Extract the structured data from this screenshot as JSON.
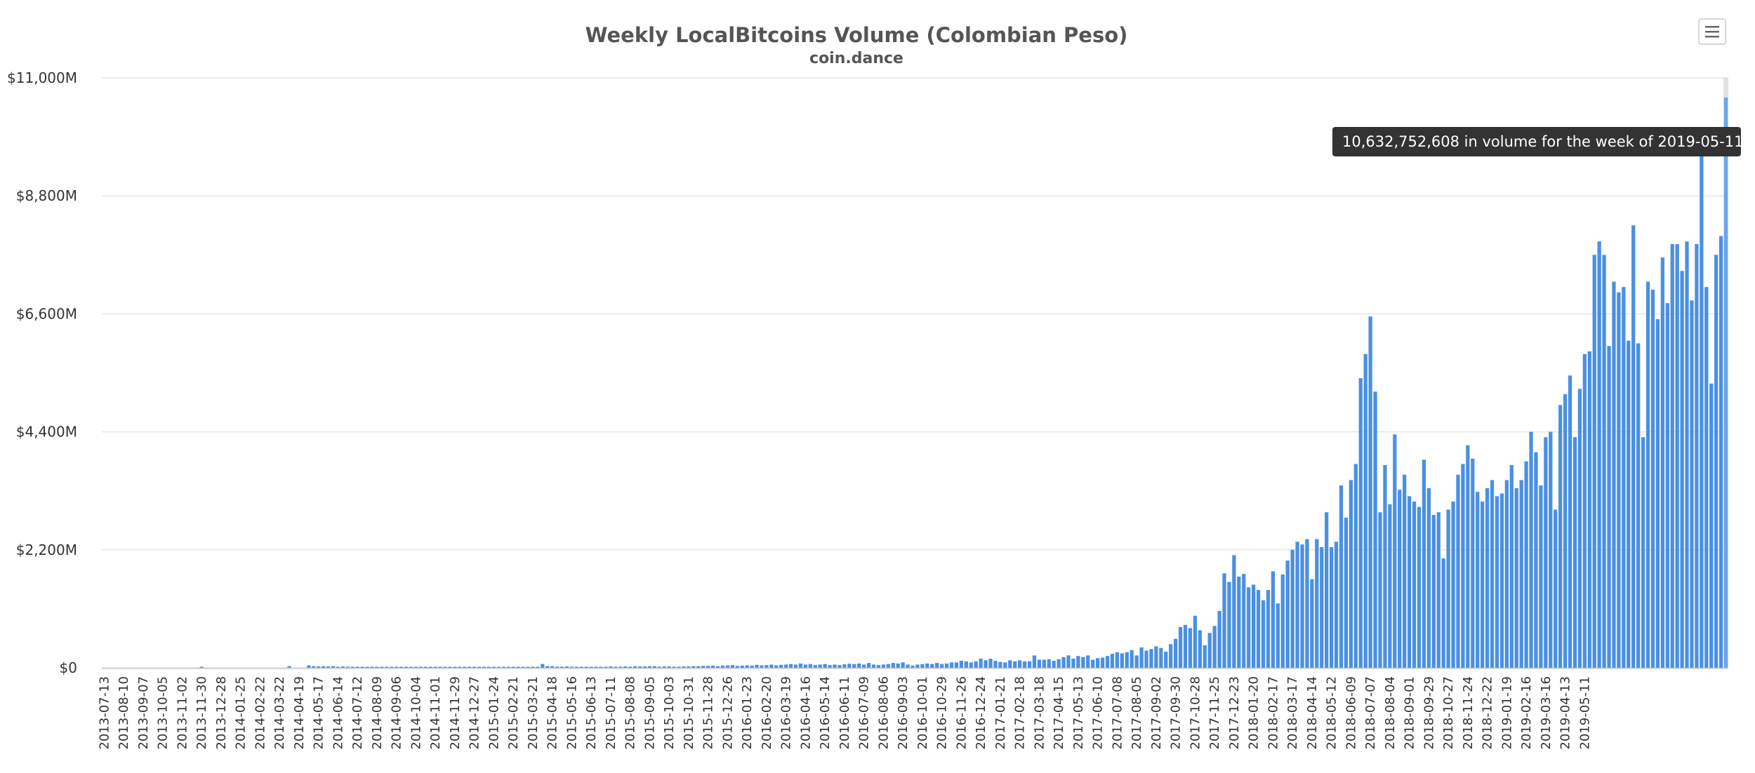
{
  "header": {
    "title": "Weekly LocalBitcoins Volume (Colombian Peso)",
    "subtitle": "coin.dance"
  },
  "colors": {
    "bar": "#4a90e2",
    "bar_highlight": "#6aa6ee",
    "highlight_band": "#d9d9d9",
    "grid": "#e6e6e6",
    "tooltip_bg": "#333333"
  },
  "icons": {
    "menu": "hamburger-menu-icon"
  },
  "tooltip": {
    "text": "10,632,752,608 in volume for the week of 2019-05-11"
  },
  "chart_data": {
    "type": "bar",
    "title": "Weekly LocalBitcoins Volume (Colombian Peso)",
    "subtitle": "coin.dance",
    "xlabel": "",
    "ylabel": "",
    "ylim": [
      0,
      11000
    ],
    "y_unit": "millions",
    "yticks": [
      "$0",
      "$2,200M",
      "$4,400M",
      "$6,600M",
      "$8,800M",
      "$11,000M"
    ],
    "grid": true,
    "legend": "none",
    "highlighted": "2019-05-11",
    "tick_labels": [
      "2013-07-13",
      "2013-08-10",
      "2013-09-07",
      "2013-10-05",
      "2013-11-02",
      "2013-11-30",
      "2013-12-28",
      "2014-01-25",
      "2014-02-22",
      "2014-03-22",
      "2014-04-19",
      "2014-05-17",
      "2014-06-14",
      "2014-07-12",
      "2014-08-09",
      "2014-09-06",
      "2014-10-04",
      "2014-11-01",
      "2014-11-29",
      "2014-12-27",
      "2015-01-24",
      "2015-02-21",
      "2015-03-21",
      "2015-04-18",
      "2015-05-16",
      "2015-06-13",
      "2015-07-11",
      "2015-08-08",
      "2015-09-05",
      "2015-10-03",
      "2015-10-31",
      "2015-11-28",
      "2015-12-26",
      "2016-01-23",
      "2016-02-20",
      "2016-03-19",
      "2016-04-16",
      "2016-05-14",
      "2016-06-11",
      "2016-07-09",
      "2016-08-06",
      "2016-09-03",
      "2016-10-01",
      "2016-10-29",
      "2016-11-26",
      "2016-12-24",
      "2017-01-21",
      "2017-02-18",
      "2017-03-18",
      "2017-04-15",
      "2017-05-13",
      "2017-06-10",
      "2017-07-08",
      "2017-08-05",
      "2017-09-02",
      "2017-09-30",
      "2017-10-28",
      "2017-11-25",
      "2017-12-23",
      "2018-01-20",
      "2018-02-17",
      "2018-03-17",
      "2018-04-14",
      "2018-05-12",
      "2018-06-09",
      "2018-07-07",
      "2018-08-04",
      "2018-09-01",
      "2018-09-29",
      "2018-10-27",
      "2018-11-24",
      "2018-12-22",
      "2019-01-19",
      "2019-02-16",
      "2019-03-16",
      "2019-04-13",
      "2019-05-11"
    ],
    "start_week": "2013-07-13",
    "values": [
      0,
      0,
      0,
      0,
      0,
      0,
      0,
      0,
      0,
      0,
      0,
      0,
      0,
      0,
      0,
      0,
      0,
      0,
      0,
      0,
      5,
      0,
      0,
      0,
      0,
      0,
      0,
      0,
      0,
      0,
      0,
      0,
      0,
      0,
      0,
      0,
      0,
      0,
      30,
      0,
      0,
      0,
      45,
      30,
      25,
      30,
      25,
      30,
      20,
      25,
      20,
      15,
      10,
      15,
      10,
      10,
      10,
      15,
      10,
      15,
      10,
      10,
      10,
      15,
      15,
      10,
      10,
      10,
      15,
      10,
      15,
      10,
      15,
      10,
      15,
      10,
      15,
      10,
      10,
      15,
      10,
      15,
      10,
      10,
      15,
      10,
      10,
      10,
      15,
      10,
      70,
      30,
      30,
      20,
      20,
      25,
      20,
      15,
      15,
      20,
      15,
      15,
      15,
      20,
      25,
      15,
      20,
      25,
      20,
      30,
      25,
      25,
      30,
      30,
      20,
      25,
      25,
      20,
      20,
      25,
      25,
      30,
      30,
      35,
      35,
      40,
      30,
      40,
      45,
      50,
      35,
      40,
      45,
      40,
      55,
      45,
      50,
      60,
      45,
      55,
      60,
      70,
      60,
      80,
      60,
      70,
      50,
      60,
      70,
      50,
      60,
      50,
      65,
      75,
      70,
      80,
      60,
      90,
      60,
      50,
      60,
      70,
      90,
      80,
      100,
      60,
      40,
      60,
      70,
      80,
      70,
      90,
      70,
      80,
      100,
      100,
      130,
      120,
      100,
      120,
      170,
      140,
      170,
      130,
      110,
      100,
      140,
      120,
      140,
      120,
      120,
      230,
      150,
      150,
      160,
      130,
      160,
      200,
      230,
      170,
      220,
      200,
      230,
      150,
      180,
      190,
      220,
      260,
      290,
      270,
      290,
      330,
      230,
      380,
      320,
      350,
      400,
      370,
      300,
      440,
      540,
      760,
      800,
      740,
      970,
      700,
      420,
      650,
      780,
      1060,
      1760,
      1600,
      2100,
      1700,
      1750,
      1500,
      1550,
      1450,
      1260,
      1450,
      1800,
      1200,
      1740,
      2000,
      2200,
      2350,
      2300,
      2400,
      1650,
      2400,
      2250,
      2900,
      2250,
      2350,
      3400,
      2800,
      3500,
      3800,
      5400,
      5850,
      6550,
      5150,
      2900,
      3780,
      3050,
      4350,
      3320,
      3600,
      3200,
      3100,
      3000,
      3880,
      3350,
      2850,
      2900,
      2040,
      2950,
      3100,
      3600,
      3800,
      4150,
      3900,
      3280,
      3100,
      3350,
      3500,
      3200,
      3250,
      3500,
      3780,
      3350,
      3500,
      3850,
      4400,
      4020,
      3400,
      4300,
      4400,
      2950,
      4900,
      5100,
      5450,
      4300,
      5200,
      5850,
      5900,
      7700,
      7950,
      7700,
      6000,
      7200,
      7000,
      7100,
      6100,
      8250,
      6050,
      4300,
      7200,
      7050,
      6500,
      7650,
      6800,
      7900,
      7900,
      7400,
      7950,
      6850,
      7900,
      9650,
      7100,
      5300,
      7700,
      8050,
      10633
    ]
  }
}
